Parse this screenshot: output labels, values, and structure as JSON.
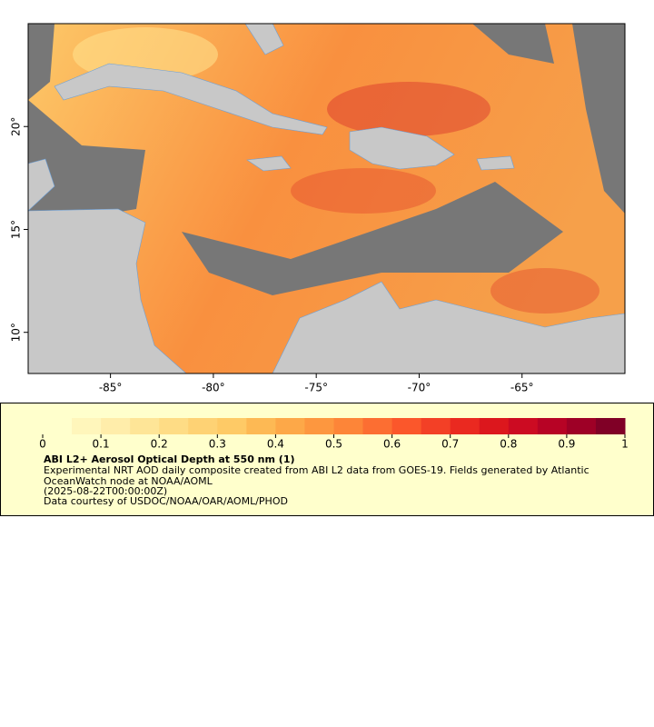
{
  "map": {
    "xlim": [
      -89,
      -60
    ],
    "ylim": [
      8,
      25
    ],
    "xticks": [
      {
        "value": -85,
        "label": "-85°"
      },
      {
        "value": -80,
        "label": "-80°"
      },
      {
        "value": -75,
        "label": "-75°"
      },
      {
        "value": -70,
        "label": "-70°"
      },
      {
        "value": -65,
        "label": "-65°"
      }
    ],
    "yticks": [
      {
        "value": 10,
        "label": "10°"
      },
      {
        "value": 15,
        "label": "15°"
      },
      {
        "value": 20,
        "label": "20°"
      }
    ]
  },
  "colorbar": {
    "lim": [
      0,
      1
    ],
    "ticks": [
      0,
      0.1,
      0.2,
      0.3,
      0.4,
      0.5,
      0.6,
      0.7,
      0.8,
      0.9,
      1
    ],
    "colors": [
      "#ffffcc",
      "#fff6bb",
      "#ffedaa",
      "#fee597",
      "#fedc85",
      "#fed274",
      "#feca66",
      "#fdb954",
      "#fda848",
      "#fd973f",
      "#fd8538",
      "#fc6e32",
      "#fb572b",
      "#f34026",
      "#ea2920",
      "#dc171d",
      "#cc0b22",
      "#b70325",
      "#9e0026",
      "#800026"
    ]
  },
  "legend": {
    "title": "ABI L2+ Aerosol Optical Depth at 550 nm (1)",
    "description": "Experimental NRT AOD daily composite created from ABI L2 data from GOES-19. Fields generated by Atlantic OceanWatch node at NOAA/AOML",
    "time": "(2025-08-22T00:00:00Z)",
    "credit": "Data courtesy of USDOC/NOAA/OAR/AOML/PHOD"
  }
}
